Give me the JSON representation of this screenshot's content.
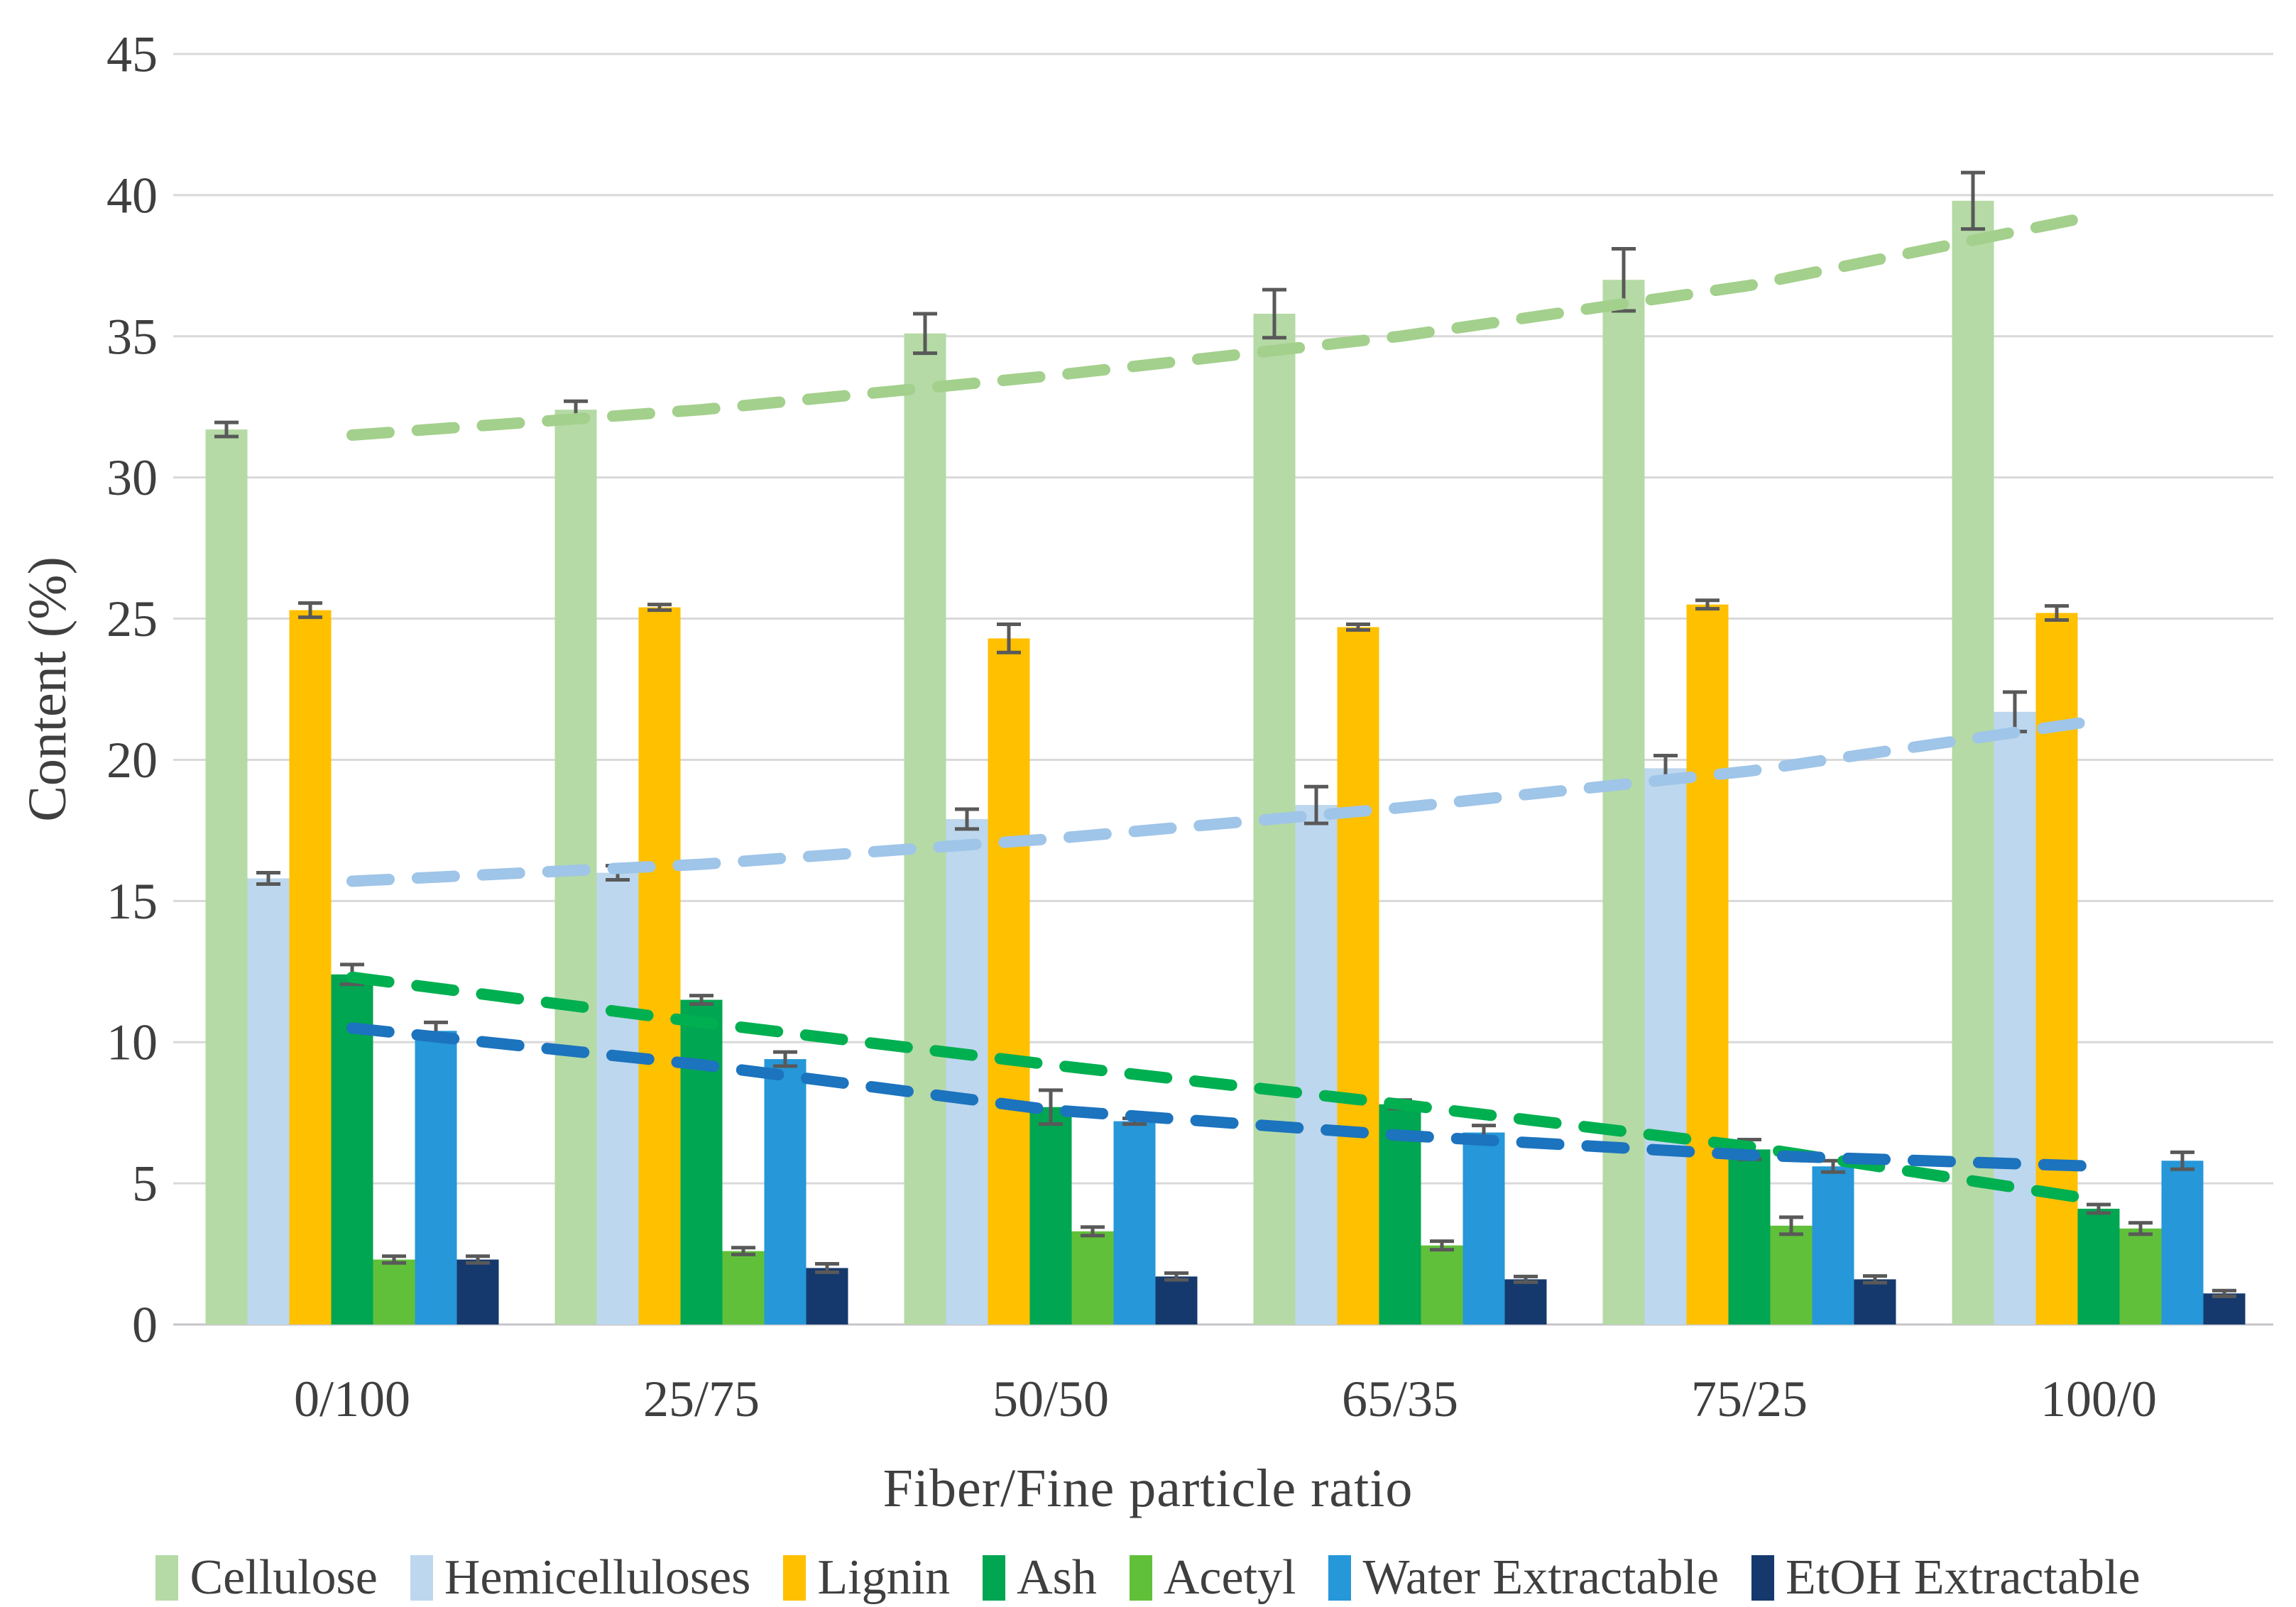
{
  "figure": {
    "background": "#FFFFFF"
  },
  "y_axis": {
    "title": "Content (%)",
    "min": 0,
    "max": 45,
    "tick_step": 5,
    "tick_labels": [
      "0",
      "5",
      "10",
      "15",
      "20",
      "25",
      "30",
      "35",
      "40",
      "45"
    ],
    "gridline_color": "#D9D9D9",
    "axis_line_color": "#C6C6CA",
    "label_color": "#3F3F3F"
  },
  "x_axis": {
    "title": "Fiber/Fine particle ratio",
    "categories": [
      "0/100",
      "25/75",
      "50/50",
      "65/35",
      "75/25",
      "100/0"
    ],
    "label_color": "#3F3F3F"
  },
  "legend": {
    "position": "bottom",
    "items": [
      {
        "label": "Cellulose",
        "color": "#B5DAA5"
      },
      {
        "label": "Hemicelluloses",
        "color": "#BDD7EE"
      },
      {
        "label": "Lignin",
        "color": "#FFC000"
      },
      {
        "label": "Ash",
        "color": "#00A651"
      },
      {
        "label": "Acetyl",
        "color": "#61C03A"
      },
      {
        "label": "Water Extractable",
        "color": "#2697D8"
      },
      {
        "label": "EtOH Extractable",
        "color": "#15396C"
      }
    ]
  },
  "chart_data": {
    "type": "bar",
    "title": "",
    "xlabel": "Fiber/Fine particle ratio",
    "ylabel": "Content (%)",
    "ylim": [
      0,
      45
    ],
    "ytick_step": 5,
    "grid": true,
    "legend_position": "bottom",
    "error_bar_color": "#595959",
    "categories": [
      "0/100",
      "25/75",
      "50/50",
      "65/35",
      "75/25",
      "100/0"
    ],
    "series": [
      {
        "name": "Cellulose",
        "key": "cellulose",
        "color": "#B5DAA5",
        "values": [
          31.7,
          32.4,
          35.1,
          35.8,
          37.0,
          39.8
        ],
        "errors": [
          0.25,
          0.3,
          0.7,
          0.85,
          1.1,
          1.0
        ],
        "trend": {
          "color": "#A3D08C",
          "values": [
            31.5,
            32.4,
            33.6,
            35.0,
            36.8,
            39.3
          ]
        }
      },
      {
        "name": "Hemicelluloses",
        "key": "hemicelluloses",
        "color": "#BDD7EE",
        "values": [
          15.8,
          16.0,
          17.9,
          18.4,
          19.7,
          21.7
        ],
        "errors": [
          0.2,
          0.25,
          0.35,
          0.65,
          0.45,
          0.7
        ],
        "trend": {
          "color": "#9FC5E8",
          "values": [
            15.7,
            16.3,
            17.2,
            18.3,
            19.6,
            21.4
          ]
        }
      },
      {
        "name": "Lignin",
        "key": "lignin",
        "color": "#FFC000",
        "values": [
          25.3,
          25.4,
          24.3,
          24.7,
          25.5,
          25.2
        ],
        "errors": [
          0.25,
          0.1,
          0.5,
          0.1,
          0.15,
          0.25
        ]
      },
      {
        "name": "Ash",
        "key": "ash",
        "color": "#00A651",
        "values": [
          12.4,
          11.5,
          7.7,
          7.8,
          6.2,
          4.1
        ],
        "errors": [
          0.35,
          0.15,
          0.6,
          0.15,
          0.35,
          0.15
        ],
        "trend": {
          "color": "#00AF50",
          "values": [
            12.3,
            10.7,
            9.2,
            7.8,
            6.3,
            4.4
          ]
        }
      },
      {
        "name": "Acetyl",
        "key": "acetyl",
        "color": "#61C03A",
        "values": [
          2.3,
          2.6,
          3.3,
          2.8,
          3.5,
          3.4
        ],
        "errors": [
          0.12,
          0.12,
          0.15,
          0.15,
          0.3,
          0.2
        ]
      },
      {
        "name": "Water Extractable",
        "key": "water-extractable",
        "color": "#2697D8",
        "values": [
          10.4,
          9.4,
          7.2,
          6.8,
          5.6,
          5.8
        ],
        "errors": [
          0.3,
          0.25,
          0.1,
          0.25,
          0.2,
          0.3
        ],
        "trend": {
          "color": "#1C73BE",
          "values": [
            10.5,
            9.2,
            7.6,
            6.7,
            6.0,
            5.6
          ]
        }
      },
      {
        "name": "EtOH Extractable",
        "key": "etoh-extractable",
        "color": "#15396C",
        "values": [
          2.3,
          2.0,
          1.7,
          1.6,
          1.6,
          1.1
        ],
        "errors": [
          0.12,
          0.15,
          0.12,
          0.1,
          0.12,
          0.1
        ]
      }
    ]
  }
}
